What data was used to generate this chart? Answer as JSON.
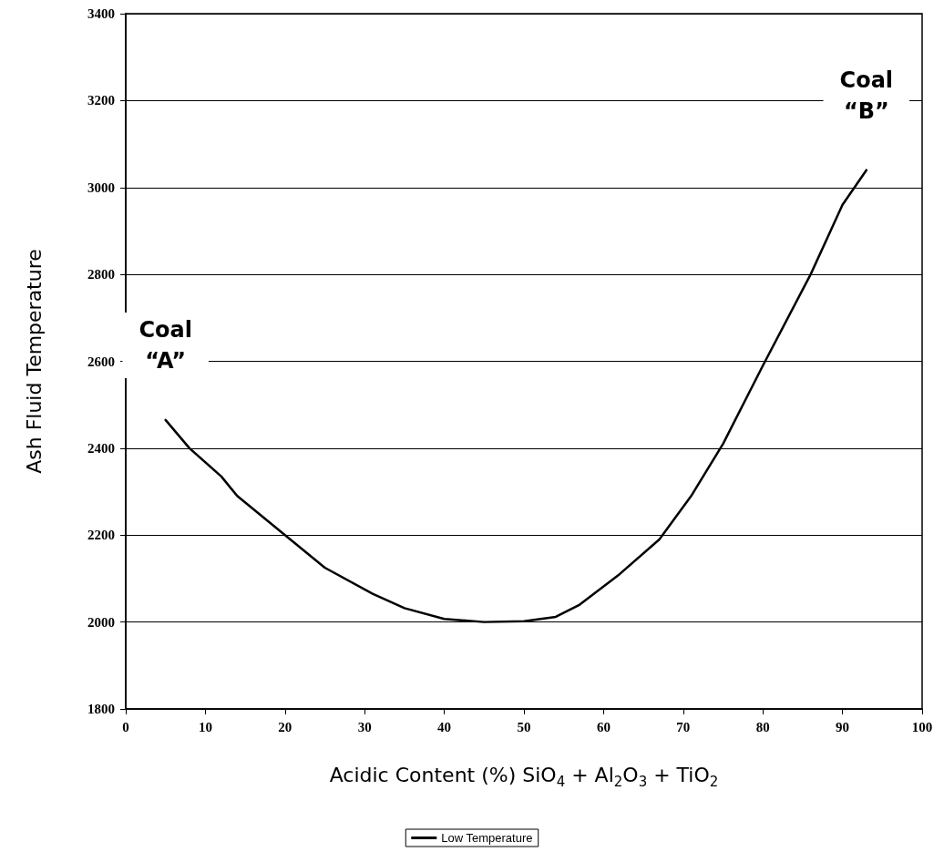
{
  "chart_data": {
    "type": "line",
    "xlabel": "Acidic Content (%) SiO$_{4}$ + Al$_{2}$O$_{3}$ + TiO$_{2}$",
    "ylabel": "Ash Fluid Temperature",
    "x": [
      5,
      8,
      12,
      14,
      20,
      25,
      31,
      35,
      40,
      45,
      50,
      54,
      57,
      62,
      67,
      71,
      75,
      80,
      86,
      90,
      93
    ],
    "series": [
      {
        "name": "Low Temperature",
        "color": "#000000",
        "values": [
          2465,
          2400,
          2335,
          2290,
          2200,
          2125,
          2065,
          2032,
          2007,
          2000,
          2002,
          2012,
          2040,
          2110,
          2190,
          2290,
          2410,
          2590,
          2800,
          2960,
          3040
        ]
      }
    ],
    "xlim": [
      0,
      100
    ],
    "xticks": [
      0,
      10,
      20,
      30,
      40,
      50,
      60,
      70,
      80,
      90,
      100
    ],
    "ylim": [
      1800,
      3400
    ],
    "yticks": [
      1800,
      2000,
      2200,
      2400,
      2600,
      2800,
      3000,
      3200,
      3400
    ],
    "grid": "y",
    "legend": "bottom",
    "marker": "none",
    "line_style": "solid",
    "annotations": [
      {
        "text": "Coal\n“A”",
        "x": 5,
        "y": 2465
      },
      {
        "text": "Coal\n“B”",
        "x": 93,
        "y": 3040
      }
    ]
  }
}
